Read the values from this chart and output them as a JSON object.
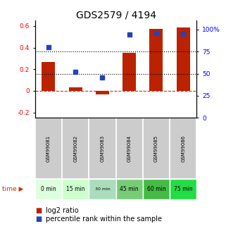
{
  "title": "GDS2579 / 4194",
  "samples": [
    "GSM99081",
    "GSM99082",
    "GSM99083",
    "GSM99084",
    "GSM99085",
    "GSM99086"
  ],
  "time_labels": [
    "0 min",
    "15 min",
    "30 min",
    "45 min",
    "60 min",
    "75 min"
  ],
  "log2_ratio": [
    0.265,
    0.03,
    -0.03,
    0.35,
    0.575,
    0.585
  ],
  "percentile_rank_pct": [
    80,
    52,
    46,
    94,
    96,
    95
  ],
  "bar_color": "#bb2200",
  "dot_color": "#2244bb",
  "ylim_left": [
    -0.25,
    0.65
  ],
  "ylim_right": [
    0,
    110
  ],
  "yticks_left": [
    -0.2,
    0.0,
    0.2,
    0.4,
    0.6
  ],
  "ytick_labels_left": [
    "-0.2",
    "0",
    "0.2",
    "0.4",
    "0.6"
  ],
  "yticks_right": [
    0,
    25,
    50,
    75,
    100
  ],
  "ytick_labels_right": [
    "0",
    "25",
    "50",
    "75",
    "100%"
  ],
  "hline_y_left": [
    0.2,
    0.4
  ],
  "hline_y_right": [
    50,
    75
  ],
  "zero_line_y": 0.0,
  "time_colors": [
    "#ddffdd",
    "#ccffcc",
    "#aaddbb",
    "#77cc77",
    "#44bb44",
    "#22dd44"
  ],
  "sample_bg_color": "#cccccc",
  "title_fontsize": 10,
  "tick_fontsize": 6.5,
  "legend_fontsize": 7
}
